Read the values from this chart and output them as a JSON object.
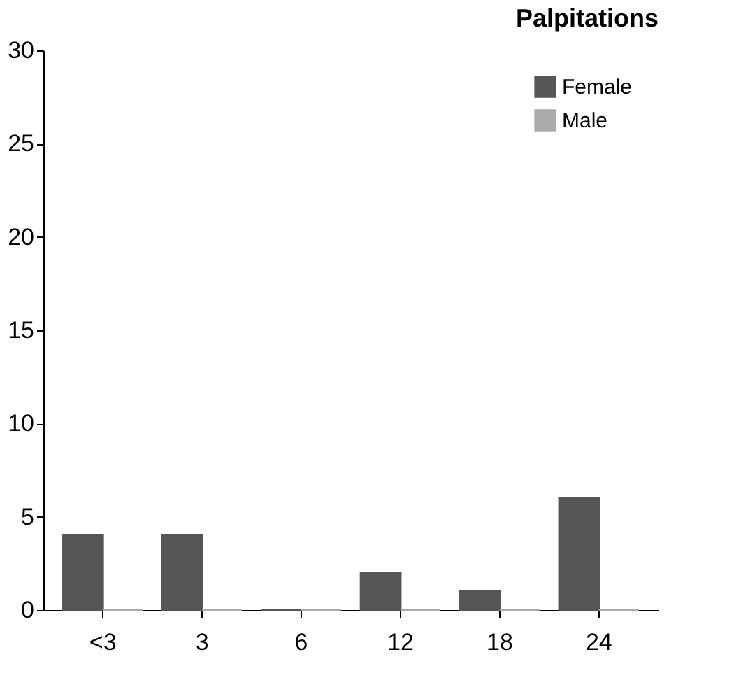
{
  "chart_data": {
    "type": "bar",
    "title": "Palpitations",
    "categories": [
      "<3",
      "3",
      "6",
      "12",
      "18",
      "24"
    ],
    "series": [
      {
        "name": "Female",
        "color": "#555555",
        "values": [
          4,
          4,
          0,
          2,
          1,
          6
        ]
      },
      {
        "name": "Male",
        "color": "#aaaaaa",
        "values": [
          0,
          0,
          0,
          0,
          0,
          0
        ]
      }
    ],
    "ylim": [
      0,
      30
    ],
    "yticks": [
      0,
      5,
      10,
      15,
      20,
      25,
      30
    ],
    "grid": false,
    "legend": "top right"
  }
}
